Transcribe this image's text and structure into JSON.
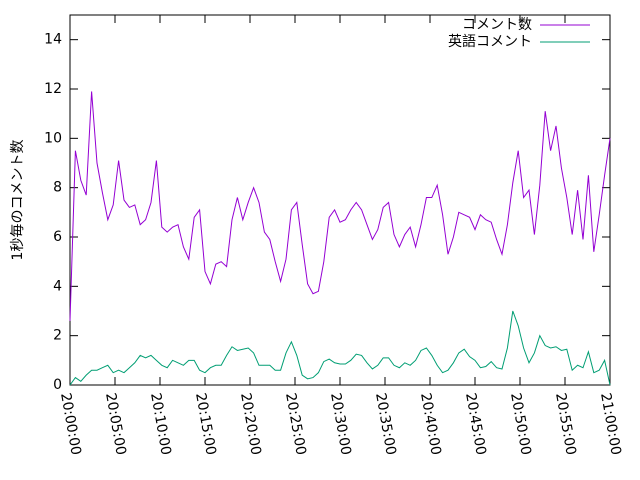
{
  "chart_data": {
    "type": "line",
    "ylabel": "1秒毎のコメント数",
    "xlim": [
      "20:00:00",
      "21:00:00"
    ],
    "xticks": [
      "20:00:00",
      "20:05:00",
      "20:10:00",
      "20:15:00",
      "20:20:00",
      "20:25:00",
      "20:30:00",
      "20:35:00",
      "20:40:00",
      "20:45:00",
      "20:50:00",
      "20:55:00",
      "21:00:00"
    ],
    "ylim": [
      0,
      15
    ],
    "yticks": [
      0,
      2,
      4,
      6,
      8,
      10,
      12,
      14
    ],
    "legend": "top-right",
    "x": [
      "20:00:00",
      "20:00:36",
      "20:01:12",
      "20:01:48",
      "20:02:24",
      "20:03:00",
      "20:03:36",
      "20:04:12",
      "20:04:48",
      "20:05:24",
      "20:06:00",
      "20:06:36",
      "20:07:12",
      "20:07:48",
      "20:08:24",
      "20:09:00",
      "20:09:36",
      "20:10:12",
      "20:10:48",
      "20:11:24",
      "20:12:00",
      "20:12:36",
      "20:13:12",
      "20:13:48",
      "20:14:24",
      "20:15:00",
      "20:15:36",
      "20:16:12",
      "20:16:48",
      "20:17:24",
      "20:18:00",
      "20:18:36",
      "20:19:12",
      "20:19:48",
      "20:20:24",
      "20:21:00",
      "20:21:36",
      "20:22:12",
      "20:22:48",
      "20:23:24",
      "20:24:00",
      "20:24:36",
      "20:25:12",
      "20:25:48",
      "20:26:24",
      "20:27:00",
      "20:27:36",
      "20:28:12",
      "20:28:48",
      "20:29:24",
      "20:30:00",
      "20:30:36",
      "20:31:12",
      "20:31:48",
      "20:32:24",
      "20:33:00",
      "20:33:36",
      "20:34:12",
      "20:34:48",
      "20:35:24",
      "20:36:00",
      "20:36:36",
      "20:37:12",
      "20:37:48",
      "20:38:24",
      "20:39:00",
      "20:39:36",
      "20:40:12",
      "20:40:48",
      "20:41:24",
      "20:42:00",
      "20:42:36",
      "20:43:12",
      "20:43:48",
      "20:44:24",
      "20:45:00",
      "20:45:36",
      "20:46:12",
      "20:46:48",
      "20:47:24",
      "20:48:00",
      "20:48:36",
      "20:49:12",
      "20:49:48",
      "20:50:24",
      "20:51:00",
      "20:51:36",
      "20:52:12",
      "20:52:48",
      "20:53:24",
      "20:54:00",
      "20:54:36",
      "20:55:12",
      "20:55:48",
      "20:56:24",
      "20:57:00",
      "20:57:36",
      "20:58:12",
      "20:58:48",
      "20:59:24",
      "21:00:00"
    ],
    "series": [
      {
        "name": "コメント数",
        "color": "#9400d3",
        "values": [
          2.6,
          9.5,
          8.3,
          7.7,
          11.9,
          9.0,
          7.8,
          6.7,
          7.3,
          9.1,
          7.5,
          7.2,
          7.3,
          6.5,
          6.7,
          7.4,
          9.1,
          6.4,
          6.2,
          6.4,
          6.5,
          5.6,
          5.1,
          6.8,
          7.1,
          4.6,
          4.1,
          4.9,
          5.0,
          4.8,
          6.7,
          7.6,
          6.7,
          7.4,
          8.0,
          7.4,
          6.2,
          5.9,
          5.0,
          4.2,
          5.1,
          7.1,
          7.4,
          5.7,
          4.1,
          3.7,
          3.8,
          5.0,
          6.8,
          7.1,
          6.6,
          6.7,
          7.1,
          7.4,
          7.1,
          6.5,
          5.9,
          6.3,
          7.2,
          7.4,
          6.1,
          5.6,
          6.1,
          6.4,
          5.6,
          6.5,
          7.6,
          7.6,
          8.1,
          6.9,
          5.3,
          6.0,
          7.0,
          6.9,
          6.8,
          6.3,
          6.9,
          6.7,
          6.6,
          5.9,
          5.3,
          6.5,
          8.2,
          9.5,
          7.6,
          7.9,
          6.1,
          8.1,
          11.1,
          9.5,
          10.5,
          8.8,
          7.6,
          6.1,
          7.9,
          5.9,
          8.5,
          5.4,
          6.9,
          8.5,
          10.0
        ]
      },
      {
        "name": "英語コメント",
        "color": "#009e73",
        "values": [
          0.0,
          0.3,
          0.15,
          0.4,
          0.6,
          0.6,
          0.7,
          0.8,
          0.5,
          0.6,
          0.5,
          0.7,
          0.9,
          1.2,
          1.1,
          1.2,
          1.0,
          0.8,
          0.7,
          1.0,
          0.9,
          0.8,
          1.0,
          1.0,
          0.6,
          0.5,
          0.7,
          0.8,
          0.8,
          1.2,
          1.55,
          1.4,
          1.45,
          1.5,
          1.3,
          0.8,
          0.8,
          0.8,
          0.6,
          0.6,
          1.3,
          1.75,
          1.2,
          0.4,
          0.25,
          0.3,
          0.5,
          0.95,
          1.05,
          0.9,
          0.85,
          0.85,
          1.0,
          1.25,
          1.2,
          0.9,
          0.65,
          0.8,
          1.1,
          1.1,
          0.8,
          0.7,
          0.9,
          0.8,
          1.0,
          1.4,
          1.5,
          1.2,
          0.8,
          0.5,
          0.6,
          0.9,
          1.3,
          1.45,
          1.15,
          1.0,
          0.7,
          0.75,
          0.95,
          0.7,
          0.65,
          1.5,
          3.0,
          2.4,
          1.5,
          0.9,
          1.3,
          2.0,
          1.6,
          1.5,
          1.55,
          1.4,
          1.45,
          0.6,
          0.8,
          0.7,
          1.35,
          0.5,
          0.6,
          1.0,
          0.0
        ]
      }
    ]
  }
}
